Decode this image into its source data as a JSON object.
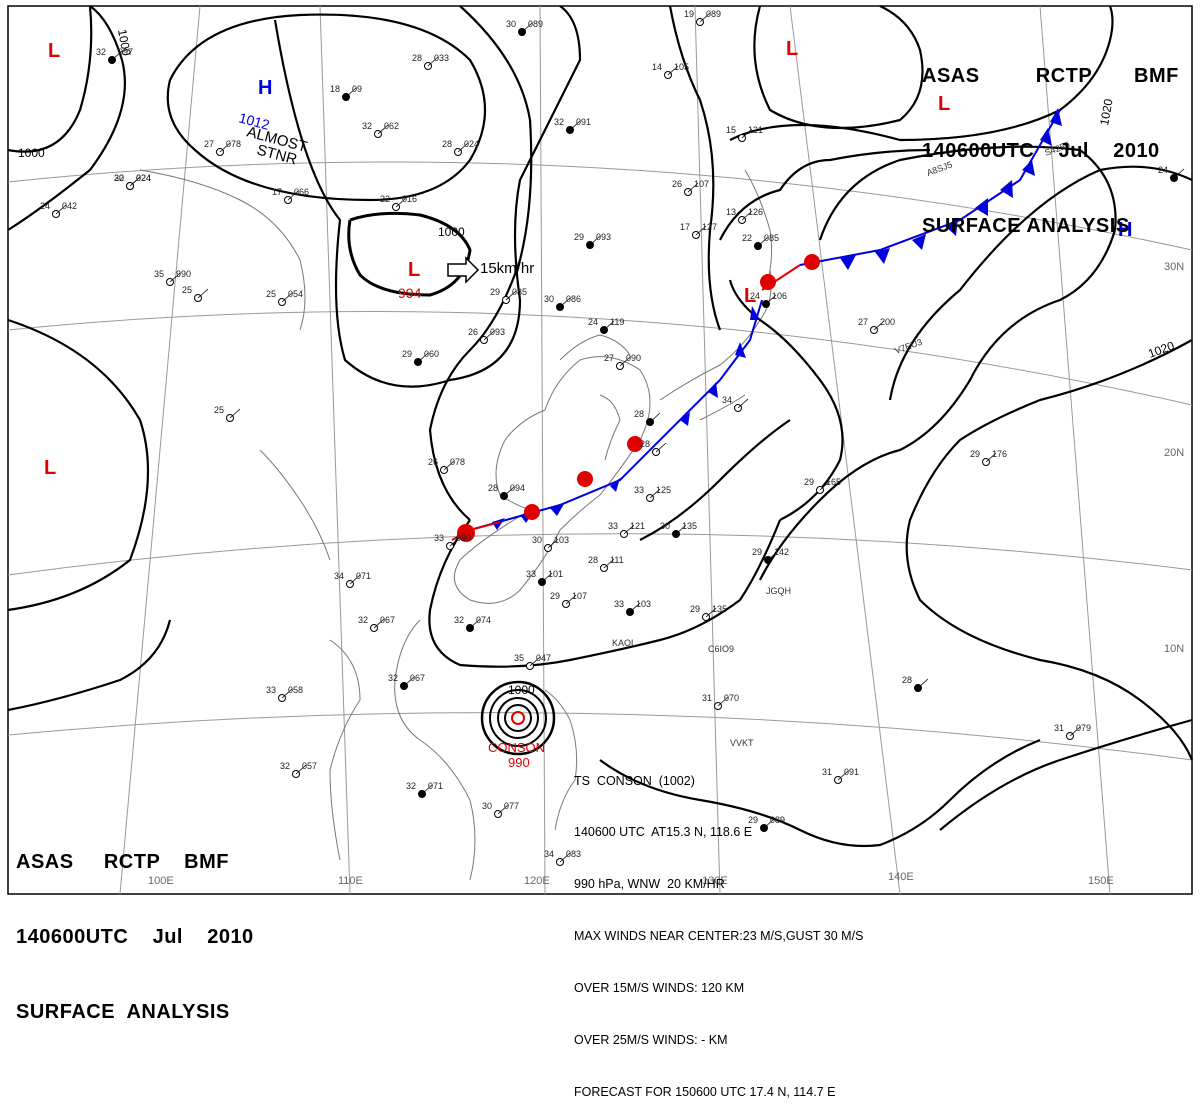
{
  "header_top": {
    "line1": "ASAS    RCTP   BMF",
    "line2": "140600UTC    Jul    2010",
    "line3": "SURFACE ANALYSIS"
  },
  "header_bottom": {
    "line1": "ASAS     RCTP    BMF",
    "line2": "140600UTC    Jul    2010",
    "line3": "SURFACE  ANALYSIS"
  },
  "storm_info": {
    "l1": "TS  CONSON  (1002)",
    "l2": "140600 UTC  AT15.3 N, 118.6 E",
    "l3": "990 hPa, WNW  20 KM/HR",
    "l4": "MAX WINDS NEAR CENTER:23 M/S,GUST 30 M/S",
    "l5": "OVER 15M/S WINDS: 120 KM",
    "l6": "OVER 25M/S WINDS: - KM",
    "l7": "FORECAST FOR 150600 UTC 17.4 N, 114.7 E"
  },
  "pressure_centers": {
    "h_nw": "H",
    "h_nw_value": "1012",
    "h_nw_note1": "ALMOST",
    "h_nw_note2": "STNR",
    "h_east": "H",
    "l_sym": "L",
    "l_mong_value": "994",
    "l_mong_motion": "15km/hr",
    "ts_name": "CONSON",
    "ts_value": "990"
  },
  "isobar_labels": {
    "a": "1000",
    "b": "1000",
    "c": "1000",
    "d": "1000",
    "e": "1020",
    "f": "1020"
  },
  "longitude_labels": {
    "a": "110E",
    "b": "120E",
    "c": "130E",
    "d": "140E",
    "e": "150E",
    "f": "100E"
  },
  "latitude_labels": {
    "a": "30N",
    "b": "20N",
    "c": "10N"
  },
  "stations": [
    {
      "t": "30",
      "v": "089"
    },
    {
      "t": "19",
      "v": "089"
    },
    {
      "t": "28",
      "v": "033"
    },
    {
      "t": "18",
      "v": "09"
    },
    {
      "t": "32",
      "v": "062"
    },
    {
      "t": "28",
      "v": "024"
    },
    {
      "t": "32",
      "v": "091"
    },
    {
      "t": "27",
      "v": "078"
    },
    {
      "t": "14",
      "v": "105"
    },
    {
      "t": "30",
      "v": "024"
    },
    {
      "t": "22",
      "v": "016"
    },
    {
      "t": "17",
      "v": "066"
    },
    {
      "t": "29",
      "v": "093"
    },
    {
      "t": "26",
      "v": "107"
    },
    {
      "t": "15",
      "v": "121"
    },
    {
      "t": "30",
      "v": "086"
    },
    {
      "t": "29",
      "v": "085"
    },
    {
      "t": "26",
      "v": "093"
    },
    {
      "t": "24",
      "v": "119"
    },
    {
      "t": "35",
      "v": "990"
    },
    {
      "t": "25",
      "v": "054"
    },
    {
      "t": "29",
      "v": "060"
    },
    {
      "t": "27",
      "v": "090"
    },
    {
      "t": "26",
      "v": "078"
    },
    {
      "t": "28",
      "v": "094"
    },
    {
      "t": "33",
      "v": "125"
    },
    {
      "t": "33",
      "v": "121"
    },
    {
      "t": "30",
      "v": "135"
    },
    {
      "t": "29",
      "v": "165"
    },
    {
      "t": "29",
      "v": "176"
    },
    {
      "t": "29",
      "v": "142"
    },
    {
      "t": "30",
      "v": "103"
    },
    {
      "t": "33",
      "v": "080"
    },
    {
      "t": "33",
      "v": "101"
    },
    {
      "t": "29",
      "v": "107"
    },
    {
      "t": "28",
      "v": "111"
    },
    {
      "t": "33",
      "v": "103"
    },
    {
      "t": "34",
      "v": "071"
    },
    {
      "t": "32",
      "v": "067"
    },
    {
      "t": "32",
      "v": "074"
    },
    {
      "t": "29",
      "v": "135"
    },
    {
      "t": "33",
      "v": "058"
    },
    {
      "t": "32",
      "v": "067"
    },
    {
      "t": "35",
      "v": "047"
    },
    {
      "t": "31",
      "v": "070"
    },
    {
      "t": "28",
      "v": ""
    },
    {
      "t": "31",
      "v": "079"
    },
    {
      "t": "32",
      "v": "057"
    },
    {
      "t": "32",
      "v": "071"
    },
    {
      "t": "30",
      "v": "077"
    },
    {
      "t": "31",
      "v": "091"
    },
    {
      "t": "29",
      "v": "089"
    },
    {
      "t": "34",
      "v": "083"
    },
    {
      "t": "27",
      "v": "200"
    },
    {
      "t": "22",
      "v": "085"
    },
    {
      "t": "24",
      "v": "042"
    },
    {
      "t": "22",
      "v": "024"
    },
    {
      "t": "32",
      "v": "097"
    },
    {
      "t": "25",
      "v": ""
    },
    {
      "t": "25",
      "v": ""
    },
    {
      "t": "28",
      "v": ""
    },
    {
      "t": "34",
      "v": ""
    },
    {
      "t": "28",
      "v": ""
    },
    {
      "t": "24",
      "v": "106"
    },
    {
      "t": "17",
      "v": "127"
    },
    {
      "t": "13",
      "v": "126"
    },
    {
      "t": "24",
      "v": ""
    }
  ],
  "station_codes": {
    "a": "JGQH",
    "b": "KAOL",
    "c": "C6IO9",
    "d": "VVKT",
    "e": "V7EU3",
    "f": "A8SJ5",
    "g": "S4255"
  },
  "colors": {
    "low": "#e00000",
    "high": "#0000dd",
    "line": "#000000",
    "grid": "#9a9a9a",
    "coast": "#777777"
  }
}
